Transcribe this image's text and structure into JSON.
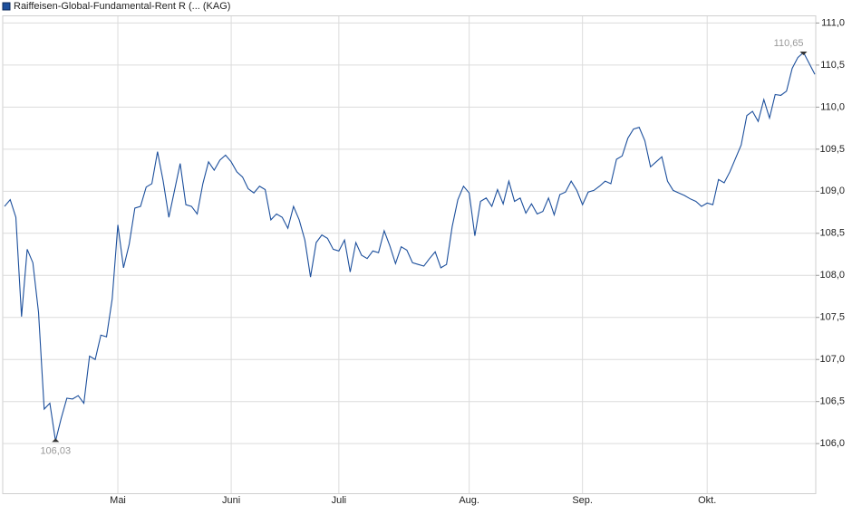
{
  "chart_data": {
    "type": "line",
    "series": [
      {
        "name": "Raiffeisen-Global-Fundamental-Rent R (... (KAG)",
        "color": "#1c4f9c",
        "values": [
          108.82,
          108.9,
          108.69,
          107.51,
          108.31,
          108.15,
          107.56,
          106.41,
          106.48,
          106.03,
          106.3,
          106.54,
          106.53,
          106.57,
          106.48,
          107.04,
          107.0,
          107.29,
          107.27,
          107.72,
          108.6,
          108.09,
          108.37,
          108.8,
          108.82,
          109.05,
          109.09,
          109.47,
          109.12,
          108.69,
          109.01,
          109.33,
          108.84,
          108.82,
          108.73,
          109.09,
          109.35,
          109.25,
          109.37,
          109.43,
          109.35,
          109.23,
          109.17,
          109.03,
          108.98,
          109.06,
          109.02,
          108.66,
          108.73,
          108.69,
          108.56,
          108.82,
          108.66,
          108.42,
          107.98,
          108.39,
          108.48,
          108.44,
          108.31,
          108.29,
          108.42,
          108.04,
          108.39,
          108.24,
          108.2,
          108.29,
          108.27,
          108.53,
          108.35,
          108.14,
          108.34,
          108.3,
          108.15,
          108.13,
          108.11,
          108.2,
          108.28,
          108.09,
          108.13,
          108.58,
          108.9,
          109.06,
          108.98,
          108.47,
          108.88,
          108.92,
          108.82,
          109.02,
          108.85,
          109.12,
          108.88,
          108.92,
          108.74,
          108.85,
          108.73,
          108.76,
          108.92,
          108.72,
          108.96,
          108.99,
          109.12,
          109.01,
          108.84,
          108.99,
          109.01,
          109.06,
          109.12,
          109.09,
          109.38,
          109.42,
          109.63,
          109.74,
          109.76,
          109.6,
          109.29,
          109.35,
          109.41,
          109.12,
          109.01,
          108.98,
          108.95,
          108.91,
          108.88,
          108.82,
          108.86,
          108.84,
          109.14,
          109.1,
          109.23,
          109.39,
          109.55,
          109.9,
          109.95,
          109.83,
          110.09,
          109.87,
          110.15,
          110.14,
          110.19,
          110.46,
          110.59,
          110.65,
          110.52,
          110.39
        ],
        "value_labels": [
          null,
          null,
          null,
          null,
          null,
          null,
          null,
          null,
          null,
          "106,03",
          null,
          null,
          null,
          null,
          null,
          null,
          null,
          null,
          null,
          null,
          null,
          null,
          null,
          null,
          null,
          null,
          null,
          null,
          null,
          null,
          null,
          null,
          null,
          null,
          null,
          null,
          null,
          null,
          null,
          null,
          null,
          null,
          null,
          null,
          null,
          null,
          null,
          null,
          null,
          null,
          null,
          null,
          null,
          null,
          null,
          null,
          null,
          null,
          null,
          null,
          null,
          null,
          null,
          null,
          null,
          null,
          null,
          null,
          null,
          null,
          null,
          null,
          null,
          null,
          null,
          null,
          null,
          null,
          null,
          null,
          null,
          null,
          null,
          null,
          null,
          null,
          null,
          null,
          null,
          null,
          null,
          null,
          null,
          null,
          null,
          null,
          null,
          null,
          null,
          null,
          null,
          null,
          null,
          null,
          null,
          null,
          null,
          null,
          null,
          null,
          null,
          null,
          null,
          null,
          null,
          null,
          null,
          null,
          null,
          null,
          null,
          null,
          null,
          null,
          null,
          null,
          null,
          null,
          null,
          null,
          null,
          null,
          null,
          null,
          null,
          null,
          null,
          null,
          null,
          null,
          null,
          "110,65",
          null,
          null
        ]
      }
    ],
    "categories": [
      null,
      null,
      null,
      null,
      null,
      null,
      null,
      null,
      null,
      null,
      null,
      null,
      null,
      null,
      null,
      null,
      null,
      null,
      null,
      null,
      "Mai",
      null,
      null,
      null,
      null,
      null,
      null,
      null,
      null,
      null,
      null,
      null,
      null,
      null,
      null,
      null,
      null,
      null,
      null,
      null,
      "Juni",
      null,
      null,
      null,
      null,
      null,
      null,
      null,
      null,
      null,
      null,
      null,
      null,
      null,
      null,
      null,
      null,
      null,
      null,
      "Juli",
      null,
      null,
      null,
      null,
      null,
      null,
      null,
      null,
      null,
      null,
      null,
      null,
      null,
      null,
      null,
      null,
      null,
      null,
      null,
      null,
      null,
      null,
      "Aug.",
      null,
      null,
      null,
      null,
      null,
      null,
      null,
      null,
      null,
      null,
      null,
      null,
      null,
      null,
      null,
      null,
      null,
      null,
      null,
      "Sep.",
      null,
      null,
      null,
      null,
      null,
      null,
      null,
      null,
      null,
      null,
      null,
      null,
      null,
      null,
      null,
      null,
      null,
      null,
      null,
      null,
      null,
      "Okt.",
      null,
      null,
      null,
      null,
      null,
      null,
      null,
      null,
      null,
      null,
      null,
      null,
      null,
      null,
      null,
      null,
      null,
      null,
      null
    ],
    "ylim": [
      105.41,
      111.08
    ],
    "yticks": [
      {
        "value": 106.0,
        "label": "106,0"
      },
      {
        "value": 106.5,
        "label": "106,5"
      },
      {
        "value": 107.0,
        "label": "107,0"
      },
      {
        "value": 107.5,
        "label": "107,5"
      },
      {
        "value": 108.0,
        "label": "108,0"
      },
      {
        "value": 108.5,
        "label": "108,5"
      },
      {
        "value": 109.0,
        "label": "109,0"
      },
      {
        "value": 109.5,
        "label": "109,5"
      },
      {
        "value": 110.0,
        "label": "110,0"
      },
      {
        "value": 110.5,
        "label": "110,5"
      },
      {
        "value": 111.0,
        "label": "111,0"
      }
    ],
    "grid": true
  }
}
